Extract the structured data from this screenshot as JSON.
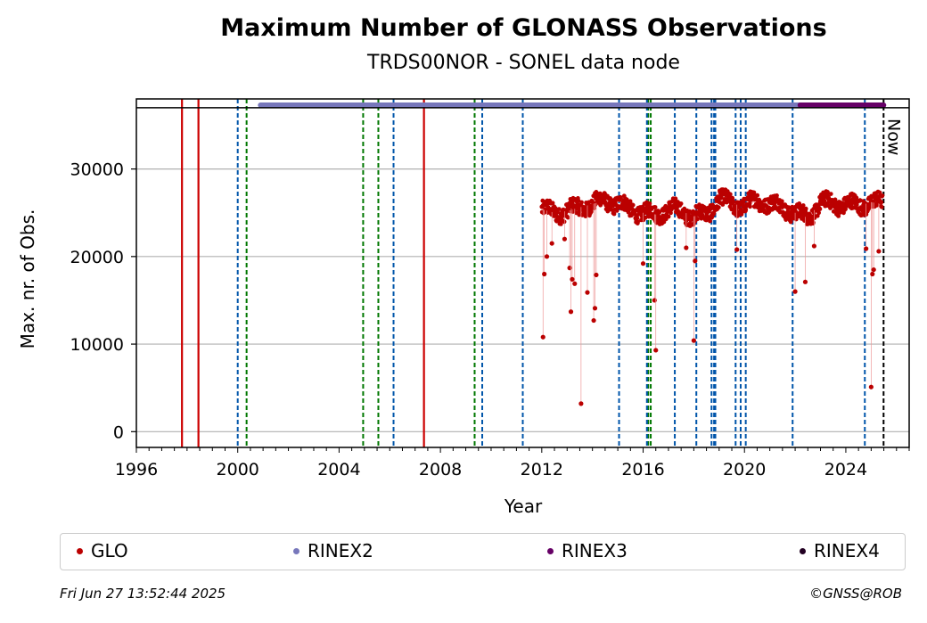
{
  "header": {
    "title": "Maximum Number of GLONASS Observations",
    "subtitle": "TRDS00NOR - SONEL data node"
  },
  "footer": {
    "date": "Fri Jun 27 13:52:44 2025",
    "copyright": "©GNSS@ROB"
  },
  "legend": {
    "items": [
      {
        "label": "GLO",
        "color": "#bb0000"
      },
      {
        "label": "RINEX2",
        "color": "#7777bb"
      },
      {
        "label": "RINEX3",
        "color": "#660066"
      },
      {
        "label": "RINEX4",
        "color": "#220022"
      }
    ]
  },
  "chart_data": {
    "type": "scatter",
    "xlabel": "Year",
    "ylabel": "Max. nr. of Obs.",
    "xlim": [
      1996,
      2026.5
    ],
    "ylim": [
      -1800,
      38000
    ],
    "x_ticks": [
      1996,
      2000,
      2004,
      2008,
      2012,
      2016,
      2020,
      2024
    ],
    "y_ticks": [
      0,
      10000,
      20000,
      30000
    ],
    "grid": "horizontal",
    "now_label": "Now",
    "now_x": 2025.49,
    "data_span_lines": [
      37000
    ],
    "red_vlines": [
      1997.8,
      1998.45,
      2007.35
    ],
    "green_vlines": [
      2000.35,
      2004.95,
      2005.55,
      2009.35,
      2016.2,
      2016.3
    ],
    "blue_vlines": [
      2000.0,
      2006.15,
      2009.65,
      2011.25,
      2015.05,
      2016.15,
      2017.25,
      2018.1,
      2018.7,
      2018.8,
      2018.85,
      2019.65,
      2019.85,
      2020.05,
      2021.9,
      2024.75
    ],
    "rinex_bars": [
      {
        "name": "RINEX2",
        "color": "#7777bb",
        "start": 2000.9,
        "end": 2022.3
      },
      {
        "name": "RINEX3",
        "color": "#660066",
        "start": 2022.2,
        "end": 2025.49
      }
    ],
    "series": [
      {
        "name": "GLO",
        "color": "#bb0000",
        "start": 2012.0,
        "end": 2025.45,
        "baseline": [
          [
            2012.0,
            25400
          ],
          [
            2012.5,
            25000
          ],
          [
            2013.0,
            25200
          ],
          [
            2013.5,
            25600
          ],
          [
            2014.0,
            26000
          ],
          [
            2014.5,
            26400
          ],
          [
            2015.0,
            26000
          ],
          [
            2015.5,
            25400
          ],
          [
            2016.0,
            25000
          ],
          [
            2016.5,
            24800
          ],
          [
            2017.0,
            25400
          ],
          [
            2017.5,
            25200
          ],
          [
            2018.0,
            24600
          ],
          [
            2018.5,
            24800
          ],
          [
            2019.0,
            26600
          ],
          [
            2019.5,
            26000
          ],
          [
            2020.0,
            25800
          ],
          [
            2020.5,
            26400
          ],
          [
            2021.0,
            26000
          ],
          [
            2021.5,
            25600
          ],
          [
            2022.0,
            25000
          ],
          [
            2022.5,
            24400
          ],
          [
            2023.0,
            26200
          ],
          [
            2023.5,
            26000
          ],
          [
            2024.0,
            26000
          ],
          [
            2024.5,
            25800
          ],
          [
            2025.0,
            26200
          ],
          [
            2025.45,
            26000
          ]
        ],
        "outliers": [
          [
            2012.05,
            10800
          ],
          [
            2012.1,
            18000
          ],
          [
            2012.2,
            20000
          ],
          [
            2012.4,
            21500
          ],
          [
            2012.9,
            22000
          ],
          [
            2013.1,
            18700
          ],
          [
            2013.15,
            13700
          ],
          [
            2013.2,
            17400
          ],
          [
            2013.3,
            16900
          ],
          [
            2013.55,
            3200
          ],
          [
            2013.8,
            15900
          ],
          [
            2014.05,
            12700
          ],
          [
            2014.1,
            14100
          ],
          [
            2014.15,
            17900
          ],
          [
            2016.0,
            19200
          ],
          [
            2016.45,
            15000
          ],
          [
            2016.5,
            9300
          ],
          [
            2017.7,
            21000
          ],
          [
            2018.0,
            10400
          ],
          [
            2018.05,
            19500
          ],
          [
            2019.7,
            20800
          ],
          [
            2022.0,
            16000
          ],
          [
            2022.4,
            17100
          ],
          [
            2022.75,
            21200
          ],
          [
            2024.8,
            20900
          ],
          [
            2025.0,
            5100
          ],
          [
            2025.05,
            18000
          ],
          [
            2025.1,
            18500
          ],
          [
            2025.3,
            20600
          ]
        ]
      }
    ]
  }
}
